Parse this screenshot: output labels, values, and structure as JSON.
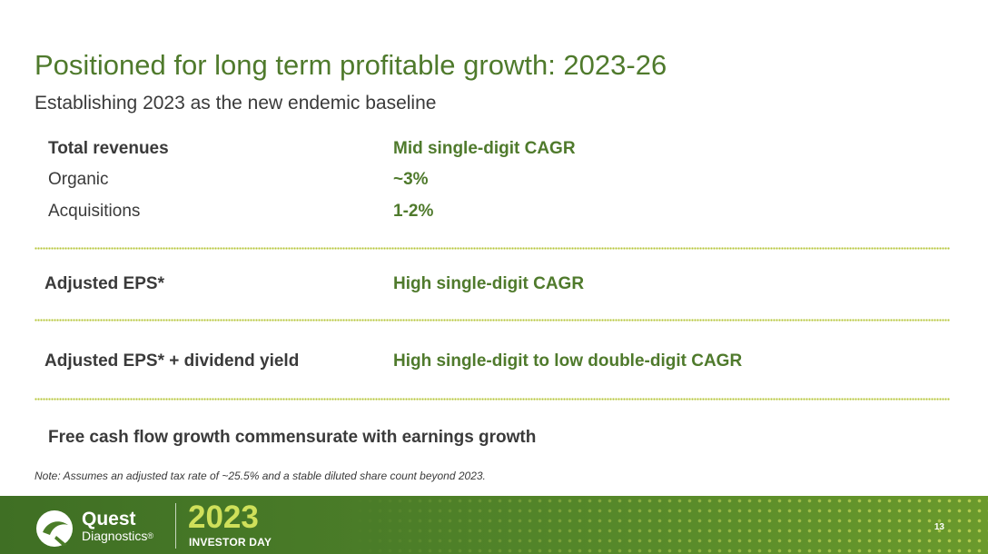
{
  "slide": {
    "title": "Positioned for long term profitable growth: 2023-26",
    "subtitle": "Establishing 2023 as the new endemic baseline"
  },
  "outlook": [
    {
      "label": "Total revenues",
      "value": "Mid single-digit CAGR"
    },
    {
      "label": "Organic",
      "value": "~3%"
    },
    {
      "label": "Acquisitions",
      "value": "1-2%"
    },
    {
      "label": "Adjusted EPS*",
      "value": "High single-digit CAGR"
    },
    {
      "label": "Adjusted EPS* + dividend yield",
      "value": "High single-digit to low double-digit CAGR"
    }
  ],
  "fcf_statement": "Free cash flow growth commensurate with earnings growth",
  "note": "Note: Assumes an adjusted tax rate of ~25.5% and a stable diluted share count beyond 2023.",
  "footer": {
    "brand_name": "Quest",
    "brand_sub": "Diagnostics",
    "brand_mark": "®",
    "event_year": "2023",
    "event_name": "INVESTOR DAY",
    "page_number": "13"
  },
  "colors": {
    "accent_green": "#4f7a2c",
    "divider_dots": "#b6c53a",
    "footer_green": "#4b7d28",
    "event_year_color": "#cfe05a"
  }
}
